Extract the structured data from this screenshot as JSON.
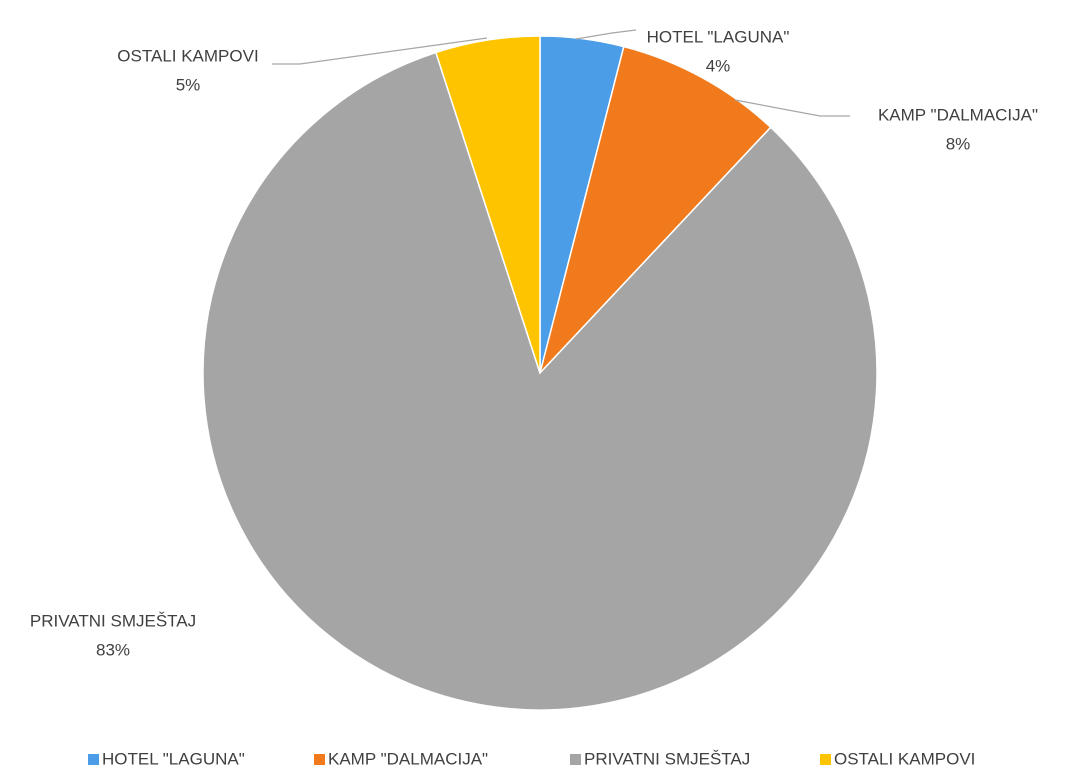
{
  "chart_data": {
    "type": "pie",
    "categories": [
      "HOTEL \"LAGUNA\"",
      "KAMP \"DALMACIJA\"",
      "PRIVATNI SMJEŠTAJ",
      "OSTALI KAMPOVI"
    ],
    "values": [
      4,
      8,
      83,
      5
    ],
    "value_labels": [
      "4%",
      "8%",
      "83%",
      "5%"
    ],
    "colors": [
      "#4a9de6",
      "#f07a1c",
      "#a5a5a5",
      "#ffc400"
    ],
    "legend": "bottom"
  }
}
